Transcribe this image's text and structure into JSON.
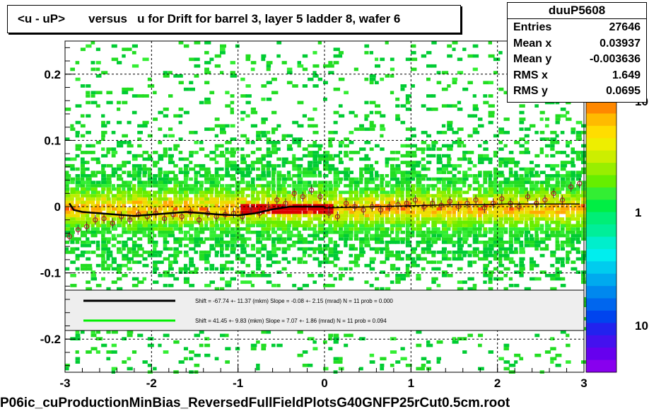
{
  "title": "<u - uP>       versus   u for Drift for barrel 3, layer 5 ladder 8, wafer 6",
  "footer": "P06ic_cuProductionMinBias_ReversedFullFieldPlotsG40GNFP25rCut0.5cm.root",
  "stats": {
    "name": "duuP5608",
    "rows": [
      {
        "key": "Entries",
        "value": "27646"
      },
      {
        "key": "Mean x",
        "value": "0.03937"
      },
      {
        "key": "Mean y",
        "value": "-0.003636"
      },
      {
        "key": "RMS x",
        "value": "1.649"
      },
      {
        "key": "RMS y",
        "value": "0.0695"
      }
    ]
  },
  "legend": {
    "entries": [
      {
        "color": "#000000",
        "text": "Shift =   -67.74 +- 11.37 (mkm) Slope =    -0.08 +- 2.15 (mrad)  N = 11 prob = 0.000"
      },
      {
        "color": "#00ee00",
        "text": "Shift =    41.45 +- 9.83 (mkm) Slope =    7.07 +- 1.86 (mrad)  N = 11 prob = 0.094"
      }
    ]
  },
  "chart_data": {
    "type": "heatmap",
    "title": "<u - uP>       versus   u for Drift for barrel 3, layer 5 ladder 8, wafer 6",
    "xlim": [
      -3,
      3
    ],
    "ylim": [
      -0.25,
      0.25
    ],
    "x_ticks": [
      "-3",
      "-2",
      "-1",
      "0",
      "1",
      "2",
      "3"
    ],
    "y_ticks": [
      "-0.2",
      "-0.1",
      "0",
      "0.1",
      "0.2"
    ],
    "z_scale": "log",
    "colorbar_ticks": [
      "10",
      "1",
      "10"
    ],
    "grid": true,
    "profile_points": {
      "x": [
        -2.95,
        -2.85,
        -2.75,
        -2.65,
        -2.55,
        -2.45,
        -2.35,
        -2.25,
        -2.15,
        -2.05,
        -1.95,
        -1.85,
        -1.75,
        -1.65,
        -1.55,
        -1.45,
        -1.35,
        -1.25,
        -1.15,
        -1.05,
        -0.95,
        -0.85,
        -0.75,
        -0.65,
        -0.55,
        -0.45,
        -0.35,
        -0.25,
        -0.15,
        -0.05,
        0.05,
        0.15,
        0.25,
        0.35,
        0.45,
        0.55,
        0.65,
        0.75,
        0.85,
        0.95,
        1.05,
        1.15,
        1.25,
        1.35,
        1.45,
        1.55,
        1.65,
        1.75,
        1.85,
        1.95,
        2.05,
        2.15,
        2.25,
        2.35,
        2.45,
        2.55,
        2.65,
        2.75,
        2.85,
        2.95
      ],
      "y": [
        -0.045,
        -0.035,
        -0.03,
        -0.02,
        -0.018,
        -0.025,
        -0.015,
        -0.02,
        -0.012,
        -0.015,
        -0.01,
        -0.018,
        -0.012,
        -0.015,
        -0.008,
        -0.02,
        -0.01,
        -0.015,
        -0.012,
        -0.01,
        -0.015,
        -0.005,
        -0.01,
        0.0,
        0.01,
        0.005,
        0.02,
        0.015,
        0.025,
        0.015,
        -0.01,
        -0.015,
        0.005,
        0.0,
        -0.005,
        0.0,
        -0.005,
        0.0,
        0.003,
        0.005,
        0.01,
        0.0,
        0.005,
        0.002,
        0.008,
        0.0,
        0.005,
        0.01,
        -0.002,
        0.005,
        0.012,
        0.005,
        0.0,
        0.015,
        0.005,
        0.01,
        0.02,
        0.01,
        0.03,
        0.035
      ]
    },
    "fit_curve": {
      "x": [
        -2.95,
        -2.9,
        -2.8,
        -2.6,
        -2.4,
        -2.2,
        -2.0,
        -1.8,
        -1.6,
        -1.4,
        -1.2,
        -1.0,
        -0.8,
        -0.6,
        -0.4,
        -0.2,
        0.0
      ],
      "y": [
        0.005,
        -0.005,
        -0.008,
        -0.01,
        -0.012,
        -0.014,
        -0.012,
        -0.01,
        -0.008,
        -0.01,
        -0.012,
        -0.013,
        -0.01,
        -0.004,
        0.0,
        0.0,
        0.0
      ]
    },
    "green_fit_curve": {
      "x": [
        0.0,
        0.3,
        0.6,
        0.9,
        1.2,
        1.5,
        1.8,
        2.1,
        2.4,
        2.7,
        2.95
      ],
      "y": [
        -0.002,
        -0.001,
        0.0,
        0.001,
        0.002,
        0.003,
        0.003,
        0.004,
        0.004,
        0.004,
        0.004
      ]
    }
  }
}
